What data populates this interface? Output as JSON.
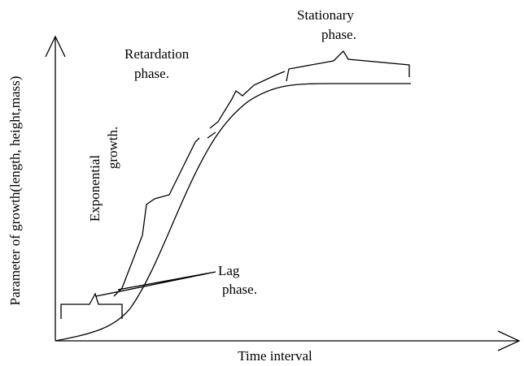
{
  "y_axis_label": "Parameter of growth(length, height,mass)",
  "x_axis_label": "Time interval",
  "phases": [
    {
      "label": [
        "Stationary",
        "phase."
      ]
    },
    {
      "label": [
        "Retardation",
        "phase."
      ]
    },
    {
      "label": [
        "Exponential",
        "growth."
      ]
    },
    {
      "label": [
        "Lag",
        "phase."
      ]
    }
  ]
}
